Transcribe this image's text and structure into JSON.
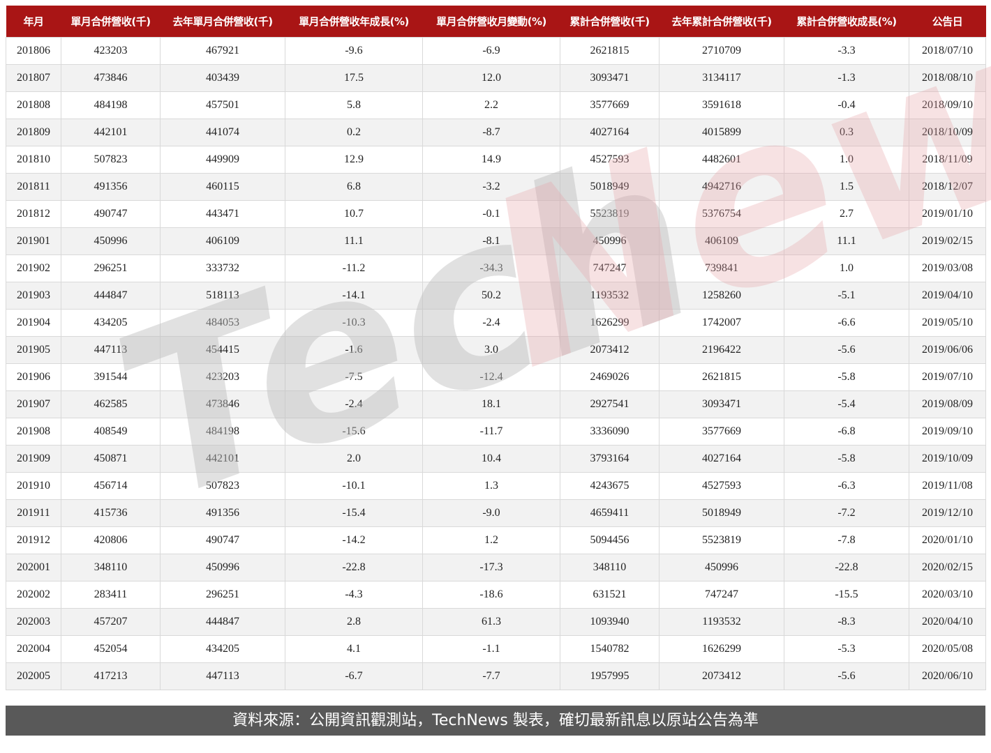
{
  "table": {
    "headers": [
      "年月",
      "單月合併營收(千)",
      "去年單月合併營收(千)",
      "單月合併營收年成長(%)",
      "單月合併營收月變動(%)",
      "累計合併營收(千)",
      "去年累計合併營收(千)",
      "累計合併營收成長(%)",
      "公告日"
    ],
    "rows": [
      [
        "201806",
        "423203",
        "467921",
        "-9.6",
        "-6.9",
        "2621815",
        "2710709",
        "-3.3",
        "2018/07/10"
      ],
      [
        "201807",
        "473846",
        "403439",
        "17.5",
        "12.0",
        "3093471",
        "3134117",
        "-1.3",
        "2018/08/10"
      ],
      [
        "201808",
        "484198",
        "457501",
        "5.8",
        "2.2",
        "3577669",
        "3591618",
        "-0.4",
        "2018/09/10"
      ],
      [
        "201809",
        "442101",
        "441074",
        "0.2",
        "-8.7",
        "4027164",
        "4015899",
        "0.3",
        "2018/10/09"
      ],
      [
        "201810",
        "507823",
        "449909",
        "12.9",
        "14.9",
        "4527593",
        "4482601",
        "1.0",
        "2018/11/09"
      ],
      [
        "201811",
        "491356",
        "460115",
        "6.8",
        "-3.2",
        "5018949",
        "4942716",
        "1.5",
        "2018/12/07"
      ],
      [
        "201812",
        "490747",
        "443471",
        "10.7",
        "-0.1",
        "5523819",
        "5376754",
        "2.7",
        "2019/01/10"
      ],
      [
        "201901",
        "450996",
        "406109",
        "11.1",
        "-8.1",
        "450996",
        "406109",
        "11.1",
        "2019/02/15"
      ],
      [
        "201902",
        "296251",
        "333732",
        "-11.2",
        "-34.3",
        "747247",
        "739841",
        "1.0",
        "2019/03/08"
      ],
      [
        "201903",
        "444847",
        "518113",
        "-14.1",
        "50.2",
        "1193532",
        "1258260",
        "-5.1",
        "2019/04/10"
      ],
      [
        "201904",
        "434205",
        "484053",
        "-10.3",
        "-2.4",
        "1626299",
        "1742007",
        "-6.6",
        "2019/05/10"
      ],
      [
        "201905",
        "447113",
        "454415",
        "-1.6",
        "3.0",
        "2073412",
        "2196422",
        "-5.6",
        "2019/06/06"
      ],
      [
        "201906",
        "391544",
        "423203",
        "-7.5",
        "-12.4",
        "2469026",
        "2621815",
        "-5.8",
        "2019/07/10"
      ],
      [
        "201907",
        "462585",
        "473846",
        "-2.4",
        "18.1",
        "2927541",
        "3093471",
        "-5.4",
        "2019/08/09"
      ],
      [
        "201908",
        "408549",
        "484198",
        "-15.6",
        "-11.7",
        "3336090",
        "3577669",
        "-6.8",
        "2019/09/10"
      ],
      [
        "201909",
        "450871",
        "442101",
        "2.0",
        "10.4",
        "3793164",
        "4027164",
        "-5.8",
        "2019/10/09"
      ],
      [
        "201910",
        "456714",
        "507823",
        "-10.1",
        "1.3",
        "4243675",
        "4527593",
        "-6.3",
        "2019/11/08"
      ],
      [
        "201911",
        "415736",
        "491356",
        "-15.4",
        "-9.0",
        "4659411",
        "5018949",
        "-7.2",
        "2019/12/10"
      ],
      [
        "201912",
        "420806",
        "490747",
        "-14.2",
        "1.2",
        "5094456",
        "5523819",
        "-7.8",
        "2020/01/10"
      ],
      [
        "202001",
        "348110",
        "450996",
        "-22.8",
        "-17.3",
        "348110",
        "450996",
        "-22.8",
        "2020/02/15"
      ],
      [
        "202002",
        "283411",
        "296251",
        "-4.3",
        "-18.6",
        "631521",
        "747247",
        "-15.5",
        "2020/03/10"
      ],
      [
        "202003",
        "457207",
        "444847",
        "2.8",
        "61.3",
        "1093940",
        "1193532",
        "-8.3",
        "2020/04/10"
      ],
      [
        "202004",
        "452054",
        "434205",
        "4.1",
        "-1.1",
        "1540782",
        "1626299",
        "-5.3",
        "2020/05/08"
      ],
      [
        "202005",
        "417213",
        "447113",
        "-6.7",
        "-7.7",
        "1957995",
        "2073412",
        "-5.6",
        "2020/06/10"
      ]
    ]
  },
  "watermark": {
    "part1": "Tech",
    "part2": "News"
  },
  "footer": {
    "text": "資料來源：公開資訊觀測站，TechNews 製表，確切最新訊息以原站公告為準"
  },
  "colors": {
    "header_bg": "#a91515",
    "footer_bg": "#595959",
    "watermark_gray": "#cfcfcf",
    "watermark_pink": "#f2c6c9"
  }
}
